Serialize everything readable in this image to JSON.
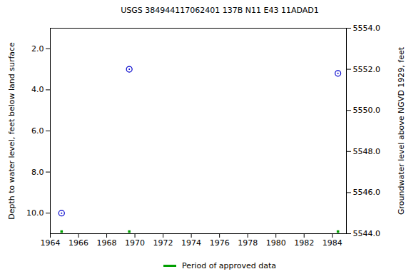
{
  "chart_data": {
    "type": "scatter",
    "title": "USGS 384944117062401 137B N11 E43 11ADAD1",
    "x_label": null,
    "y_label": "Depth to water level, feet below land surface",
    "y2_label": "Groundwater level above NGVD 1929, feet",
    "x": [
      1964.8,
      1969.6,
      1984.4
    ],
    "values": [
      10.0,
      3.0,
      3.2
    ],
    "color": "#0000cc",
    "marker": "circle",
    "approved_data": {
      "name": "Period of approved data",
      "color": "#00a000",
      "marker": "square",
      "x": [
        1964.8,
        1969.6,
        1984.4
      ]
    },
    "legend": "bottom",
    "xlim": [
      1964,
      1985
    ],
    "xticks": [
      1964,
      1966,
      1968,
      1970,
      1972,
      1974,
      1976,
      1978,
      1980,
      1982,
      1984
    ],
    "ylim": [
      11,
      1
    ],
    "yticks": [
      {
        "value": 2,
        "label": "2.0"
      },
      {
        "value": 4,
        "label": "4.0"
      },
      {
        "value": 6,
        "label": "6.0"
      },
      {
        "value": 8,
        "label": "8.0"
      },
      {
        "value": 10,
        "label": "10.0"
      }
    ],
    "y2lim": [
      5544,
      5554
    ],
    "y2ticks": [
      {
        "value": 5544,
        "label": "5544.0"
      },
      {
        "value": 5546,
        "label": "5546.0"
      },
      {
        "value": 5548,
        "label": "5548.0"
      },
      {
        "value": 5550,
        "label": "5550.0"
      },
      {
        "value": 5552,
        "label": "5552.0"
      },
      {
        "value": 5554,
        "label": "5554.0"
      }
    ],
    "grid": false
  }
}
